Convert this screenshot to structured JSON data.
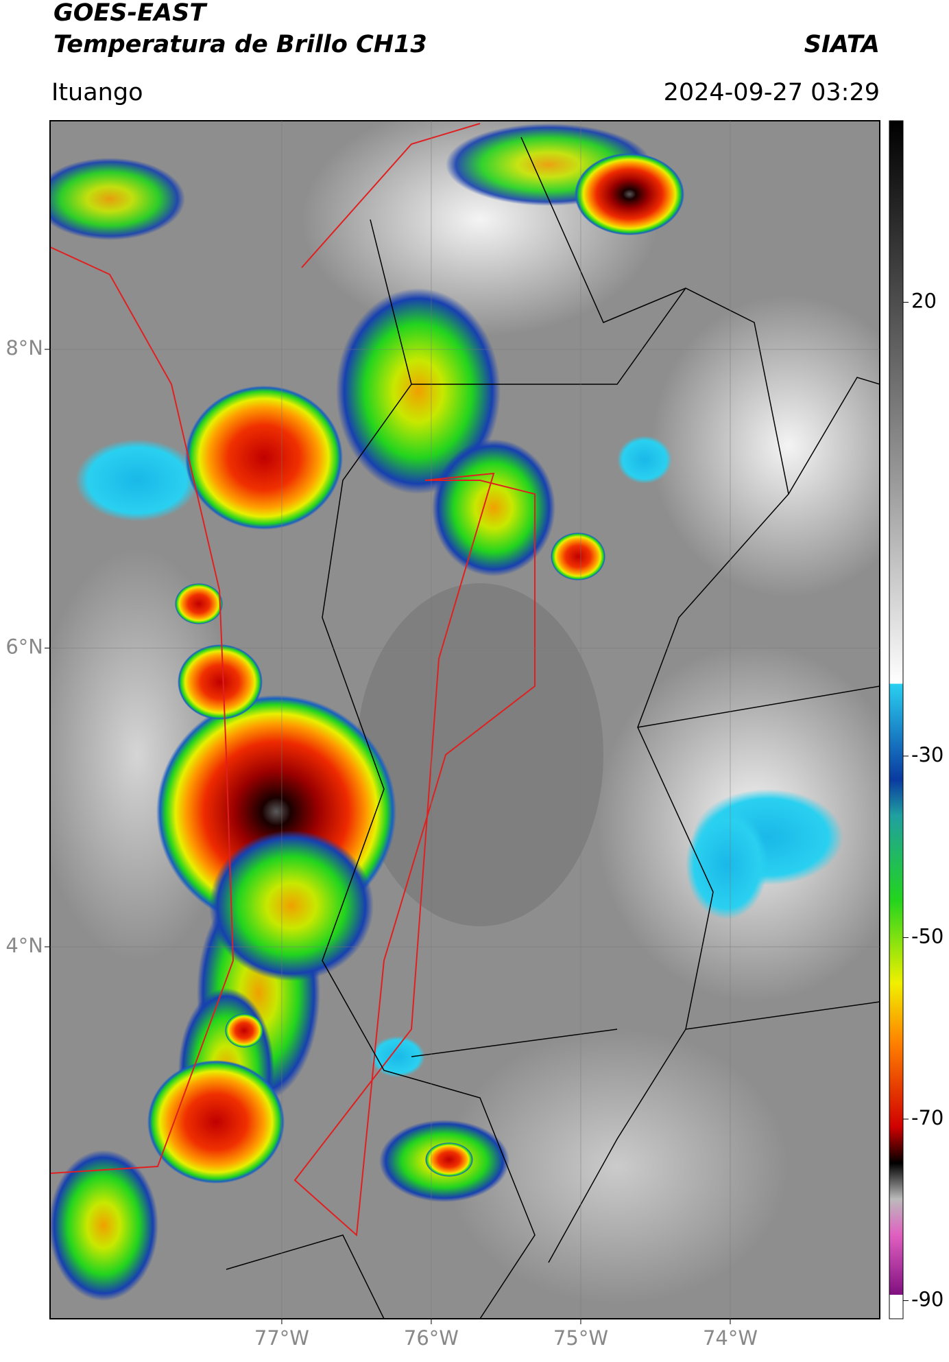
{
  "header": {
    "title": "GOES-EAST",
    "subtitle": "Temperatura de Brillo CH13",
    "source": "SIATA",
    "location": "Ituango",
    "datetime": "2024-09-27 03:29"
  },
  "map": {
    "xlim": [
      -78.55,
      -73.0
    ],
    "ylim": [
      1.51,
      9.53
    ],
    "xticks": [
      {
        "value": -77,
        "label": "77°W"
      },
      {
        "value": -76,
        "label": "76°W"
      },
      {
        "value": -75,
        "label": "75°W"
      },
      {
        "value": -74,
        "label": "74°W"
      }
    ],
    "yticks": [
      {
        "value": 8,
        "label": "8°N"
      },
      {
        "value": 6,
        "label": "6°N"
      },
      {
        "value": 4,
        "label": "4°N"
      }
    ],
    "grid": true
  },
  "colorbar": {
    "lim": [
      -92,
      40
    ],
    "ticks": [
      20,
      -30,
      -50,
      -70,
      -90
    ]
  }
}
